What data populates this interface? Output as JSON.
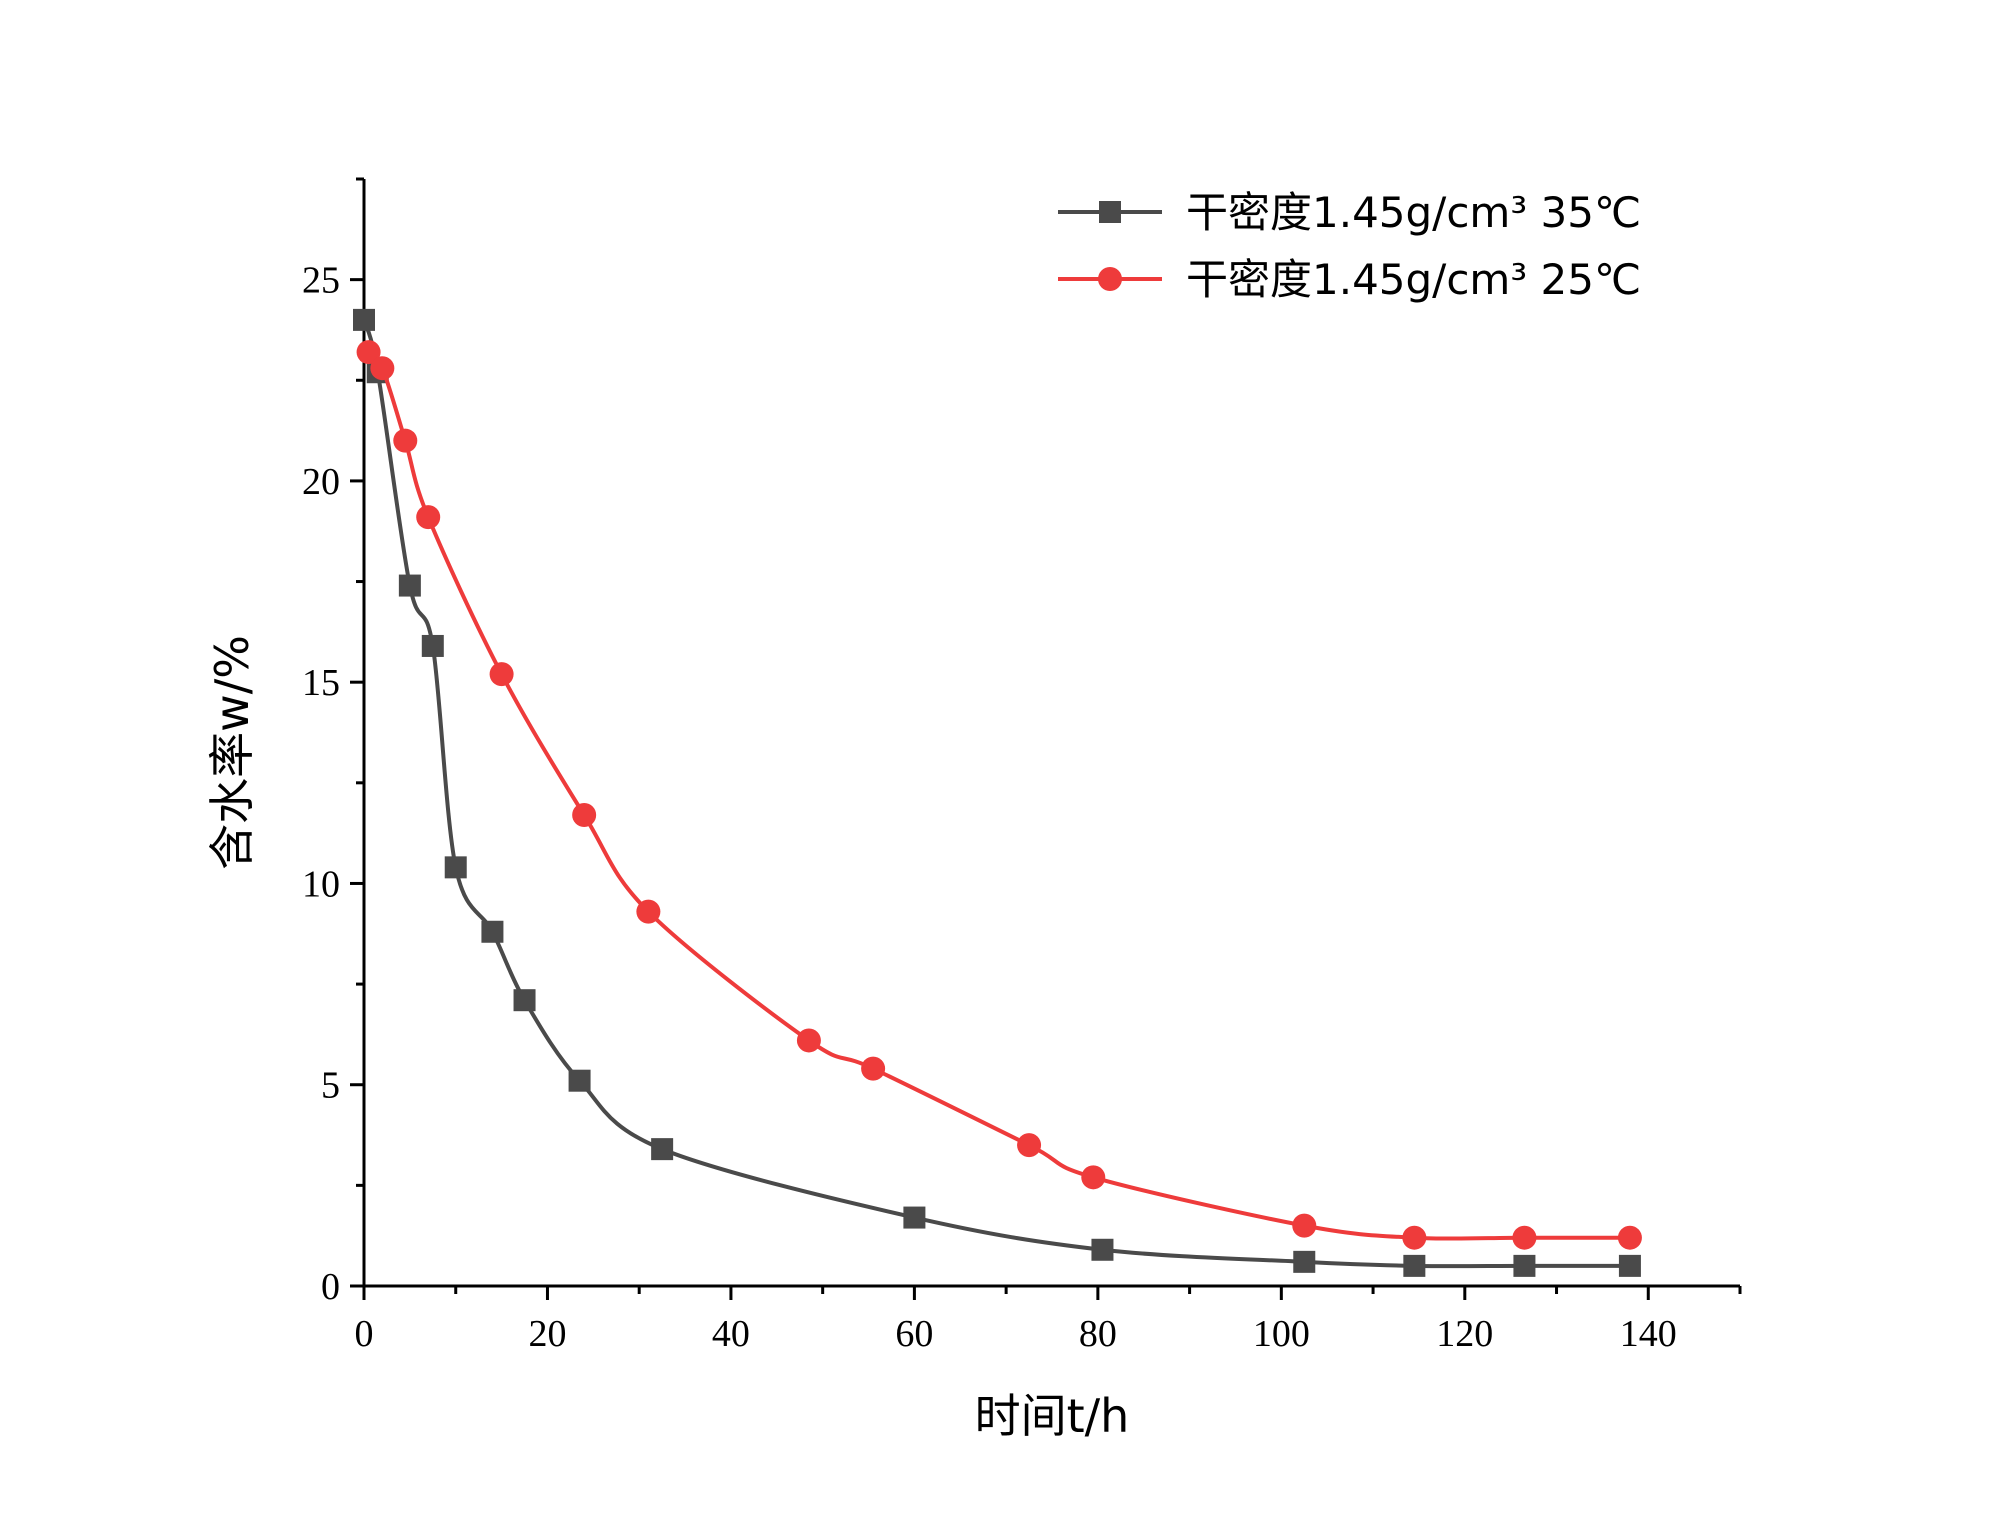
{
  "chart_data": {
    "type": "line",
    "xlabel": "时间t/h",
    "ylabel": "含水率w/%",
    "xlim": [
      0,
      150
    ],
    "ylim": [
      0,
      27.5
    ],
    "xticks": [
      0,
      20,
      40,
      60,
      80,
      100,
      120,
      140
    ],
    "yticks": [
      0,
      5,
      10,
      15,
      20,
      25
    ],
    "grid": false,
    "legend": "top-right",
    "series": [
      {
        "name": "干密度1.45g/cm³ 35℃",
        "color": "#4a4a4a",
        "marker": "square",
        "x": [
          0,
          1.5,
          5,
          7.5,
          10,
          14,
          17.5,
          23.5,
          32.5,
          60,
          80.5,
          102.5,
          114.5,
          126.5,
          138
        ],
        "y": [
          24,
          22.7,
          17.4,
          15.9,
          10.4,
          8.8,
          7.1,
          5.1,
          3.4,
          1.7,
          0.9,
          0.6,
          0.5,
          0.5,
          0.5
        ]
      },
      {
        "name": "干密度1.45g/cm³ 25℃",
        "color": "#ee3b3b",
        "marker": "circle",
        "x": [
          0.5,
          2,
          4.5,
          7,
          15,
          24,
          31,
          48.5,
          55.5,
          72.5,
          79.5,
          102.5,
          114.5,
          126.5,
          138
        ],
        "y": [
          23.2,
          22.8,
          21,
          19.1,
          15.2,
          11.7,
          9.3,
          6.1,
          5.4,
          3.5,
          2.7,
          1.5,
          1.2,
          1.2,
          1.2
        ]
      }
    ]
  }
}
